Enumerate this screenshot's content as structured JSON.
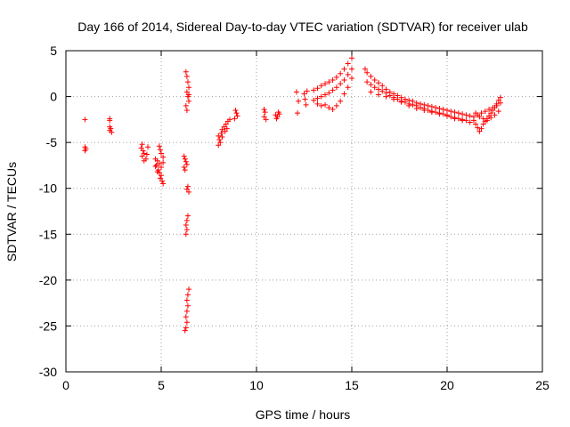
{
  "chart_data": {
    "type": "scatter",
    "title": "Day 166 of 2014, Sidereal Day-to-day VTEC variation (SDTVAR) for receiver ulab",
    "xlabel": "GPS time / hours",
    "ylabel": "SDTVAR / TECUs",
    "xlim": [
      0,
      25
    ],
    "ylim": [
      -30,
      5
    ],
    "xticks": [
      "0",
      "5",
      "10",
      "15",
      "20",
      "25"
    ],
    "yticks": [
      "5",
      "0",
      "-5",
      "-10",
      "-15",
      "-20",
      "-25",
      "-30"
    ],
    "grid": true,
    "marker": "+",
    "color": "#ff0000",
    "series": [
      {
        "name": "SDTVAR",
        "points": [
          [
            1.0,
            -2.5
          ],
          [
            1.0,
            -5.5
          ],
          [
            1.05,
            -5.7
          ],
          [
            1.0,
            -5.9
          ],
          [
            2.3,
            -2.4
          ],
          [
            2.3,
            -2.6
          ],
          [
            2.3,
            -3.3
          ],
          [
            2.35,
            -3.5
          ],
          [
            2.3,
            -3.7
          ],
          [
            2.4,
            -3.9
          ],
          [
            4.0,
            -5.2
          ],
          [
            3.95,
            -5.6
          ],
          [
            4.05,
            -5.9
          ],
          [
            4.1,
            -6.2
          ],
          [
            4.0,
            -6.5
          ],
          [
            4.2,
            -6.8
          ],
          [
            4.1,
            -7.0
          ],
          [
            4.3,
            -5.5
          ],
          [
            4.25,
            -6.3
          ],
          [
            4.7,
            -6.8
          ],
          [
            4.8,
            -7.0
          ],
          [
            4.9,
            -7.3
          ],
          [
            4.75,
            -7.5
          ],
          [
            5.0,
            -7.7
          ],
          [
            4.85,
            -8.0
          ],
          [
            4.9,
            -8.3
          ],
          [
            5.0,
            -8.6
          ],
          [
            4.95,
            -8.9
          ],
          [
            5.05,
            -9.2
          ],
          [
            5.1,
            -9.5
          ],
          [
            4.9,
            -5.4
          ],
          [
            4.95,
            -5.8
          ],
          [
            5.0,
            -6.2
          ],
          [
            5.1,
            -6.6
          ],
          [
            4.7,
            -7.6
          ],
          [
            4.8,
            -8.2
          ],
          [
            5.1,
            -7.2
          ],
          [
            6.3,
            2.7
          ],
          [
            6.35,
            2.2
          ],
          [
            6.4,
            1.6
          ],
          [
            6.45,
            1.0
          ],
          [
            6.35,
            0.5
          ],
          [
            6.4,
            0.0
          ],
          [
            6.45,
            -0.5
          ],
          [
            6.3,
            -1.0
          ],
          [
            6.35,
            -1.5
          ],
          [
            6.45,
            0.2
          ],
          [
            6.2,
            -6.5
          ],
          [
            6.25,
            -6.8
          ],
          [
            6.3,
            -7.1
          ],
          [
            6.35,
            -7.4
          ],
          [
            6.2,
            -7.7
          ],
          [
            6.25,
            -8.0
          ],
          [
            6.4,
            -9.8
          ],
          [
            6.35,
            -10.1
          ],
          [
            6.45,
            -10.4
          ],
          [
            6.4,
            -13.0
          ],
          [
            6.35,
            -13.5
          ],
          [
            6.3,
            -14.0
          ],
          [
            6.35,
            -14.5
          ],
          [
            6.3,
            -15.0
          ],
          [
            6.45,
            -21.0
          ],
          [
            6.4,
            -21.6
          ],
          [
            6.35,
            -22.2
          ],
          [
            6.4,
            -22.8
          ],
          [
            6.35,
            -23.4
          ],
          [
            6.3,
            -24.0
          ],
          [
            6.35,
            -24.6
          ],
          [
            6.3,
            -25.2
          ],
          [
            6.25,
            -25.5
          ],
          [
            8.0,
            -4.3
          ],
          [
            8.05,
            -4.7
          ],
          [
            8.1,
            -5.0
          ],
          [
            8.0,
            -5.3
          ],
          [
            8.15,
            -4.0
          ],
          [
            8.2,
            -3.6
          ],
          [
            8.3,
            -3.3
          ],
          [
            8.4,
            -3.0
          ],
          [
            8.5,
            -2.7
          ],
          [
            8.35,
            -3.8
          ],
          [
            8.45,
            -3.5
          ],
          [
            8.2,
            -4.4
          ],
          [
            8.6,
            -2.5
          ],
          [
            8.9,
            -1.5
          ],
          [
            8.95,
            -1.8
          ],
          [
            9.0,
            -2.1
          ],
          [
            8.85,
            -2.4
          ],
          [
            10.4,
            -1.4
          ],
          [
            10.45,
            -1.7
          ],
          [
            10.4,
            -2.2
          ],
          [
            10.5,
            -2.5
          ],
          [
            11.0,
            -2.0
          ],
          [
            11.1,
            -2.2
          ],
          [
            11.2,
            -1.9
          ],
          [
            11.05,
            -2.4
          ],
          [
            11.15,
            -1.7
          ],
          [
            12.1,
            0.5
          ],
          [
            12.2,
            -0.5
          ],
          [
            12.15,
            -1.8
          ],
          [
            12.5,
            0.3
          ],
          [
            12.55,
            -0.3
          ],
          [
            12.6,
            -0.9
          ],
          [
            12.65,
            0.6
          ],
          [
            13.0,
            0.7
          ],
          [
            13.2,
            0.9
          ],
          [
            13.4,
            1.2
          ],
          [
            13.6,
            1.4
          ],
          [
            13.8,
            1.6
          ],
          [
            14.0,
            1.8
          ],
          [
            14.2,
            2.1
          ],
          [
            14.4,
            2.5
          ],
          [
            14.6,
            3.0
          ],
          [
            14.8,
            3.6
          ],
          [
            15.0,
            4.2
          ],
          [
            13.0,
            -0.4
          ],
          [
            13.2,
            -0.2
          ],
          [
            13.4,
            0.0
          ],
          [
            13.6,
            0.2
          ],
          [
            13.8,
            0.4
          ],
          [
            14.0,
            0.7
          ],
          [
            14.2,
            1.0
          ],
          [
            14.4,
            1.4
          ],
          [
            14.6,
            1.8
          ],
          [
            14.8,
            2.4
          ],
          [
            15.0,
            3.0
          ],
          [
            13.2,
            -0.8
          ],
          [
            13.4,
            -1.0
          ],
          [
            13.6,
            -0.9
          ],
          [
            13.8,
            -1.2
          ],
          [
            14.0,
            -1.4
          ],
          [
            14.2,
            -1.0
          ],
          [
            14.4,
            -0.5
          ],
          [
            14.6,
            0.3
          ],
          [
            14.8,
            1.0
          ],
          [
            15.0,
            2.0
          ],
          [
            15.7,
            3.0
          ],
          [
            15.8,
            2.6
          ],
          [
            16.0,
            2.2
          ],
          [
            16.2,
            1.8
          ],
          [
            16.4,
            1.5
          ],
          [
            16.6,
            1.2
          ],
          [
            16.8,
            0.8
          ],
          [
            17.0,
            0.5
          ],
          [
            17.2,
            0.3
          ],
          [
            17.4,
            0.1
          ],
          [
            17.6,
            -0.1
          ],
          [
            17.8,
            -0.3
          ],
          [
            18.0,
            -0.4
          ],
          [
            18.2,
            -0.5
          ],
          [
            18.4,
            -0.7
          ],
          [
            18.6,
            -0.8
          ],
          [
            18.8,
            -0.9
          ],
          [
            19.0,
            -1.0
          ],
          [
            19.2,
            -1.1
          ],
          [
            19.4,
            -1.2
          ],
          [
            19.6,
            -1.3
          ],
          [
            19.8,
            -1.4
          ],
          [
            20.0,
            -1.5
          ],
          [
            20.2,
            -1.6
          ],
          [
            20.4,
            -1.7
          ],
          [
            20.6,
            -1.8
          ],
          [
            20.8,
            -1.9
          ],
          [
            21.0,
            -2.0
          ],
          [
            21.2,
            -2.1
          ],
          [
            21.4,
            -2.2
          ],
          [
            15.8,
            1.6
          ],
          [
            16.0,
            1.3
          ],
          [
            16.2,
            1.0
          ],
          [
            16.4,
            0.8
          ],
          [
            16.6,
            0.6
          ],
          [
            16.8,
            0.4
          ],
          [
            17.0,
            0.1
          ],
          [
            17.2,
            -0.1
          ],
          [
            17.4,
            -0.3
          ],
          [
            17.6,
            -0.5
          ],
          [
            17.8,
            -0.6
          ],
          [
            18.0,
            -0.8
          ],
          [
            18.2,
            -0.9
          ],
          [
            18.4,
            -1.0
          ],
          [
            18.6,
            -1.2
          ],
          [
            18.8,
            -1.3
          ],
          [
            19.0,
            -1.5
          ],
          [
            19.2,
            -1.6
          ],
          [
            19.4,
            -1.7
          ],
          [
            19.6,
            -1.8
          ],
          [
            19.8,
            -1.9
          ],
          [
            20.0,
            -2.0
          ],
          [
            20.2,
            -2.2
          ],
          [
            20.4,
            -2.3
          ],
          [
            20.6,
            -2.4
          ],
          [
            20.8,
            -2.5
          ],
          [
            21.0,
            -2.6
          ],
          [
            16.0,
            0.5
          ],
          [
            16.4,
            0.2
          ],
          [
            16.8,
            0.0
          ],
          [
            17.2,
            -0.3
          ],
          [
            17.6,
            -0.6
          ],
          [
            18.0,
            -1.0
          ],
          [
            18.4,
            -1.3
          ],
          [
            18.8,
            -1.5
          ],
          [
            19.2,
            -1.7
          ],
          [
            19.6,
            -1.9
          ],
          [
            20.0,
            -2.1
          ],
          [
            20.4,
            -2.4
          ],
          [
            20.8,
            -2.6
          ],
          [
            21.2,
            -2.8
          ],
          [
            21.4,
            -2.6
          ],
          [
            21.5,
            -3.0
          ],
          [
            21.6,
            -3.4
          ],
          [
            21.7,
            -3.8
          ],
          [
            21.8,
            -3.5
          ],
          [
            21.9,
            -3.0
          ],
          [
            22.0,
            -2.7
          ],
          [
            22.1,
            -2.4
          ],
          [
            22.2,
            -2.1
          ],
          [
            22.3,
            -1.8
          ],
          [
            22.4,
            -1.5
          ],
          [
            22.5,
            -1.2
          ],
          [
            22.6,
            -0.8
          ],
          [
            22.7,
            -0.4
          ],
          [
            22.8,
            -0.1
          ],
          [
            21.6,
            -2.0
          ],
          [
            21.8,
            -1.8
          ],
          [
            22.0,
            -1.6
          ],
          [
            22.2,
            -1.4
          ],
          [
            22.4,
            -1.2
          ],
          [
            22.6,
            -1.0
          ],
          [
            22.8,
            -0.7
          ],
          [
            21.5,
            -1.8
          ],
          [
            21.7,
            -2.2
          ],
          [
            21.9,
            -2.4
          ],
          [
            22.1,
            -2.6
          ],
          [
            22.3,
            -2.3
          ],
          [
            22.5,
            -2.0
          ],
          [
            22.7,
            -1.6
          ]
        ]
      }
    ]
  }
}
